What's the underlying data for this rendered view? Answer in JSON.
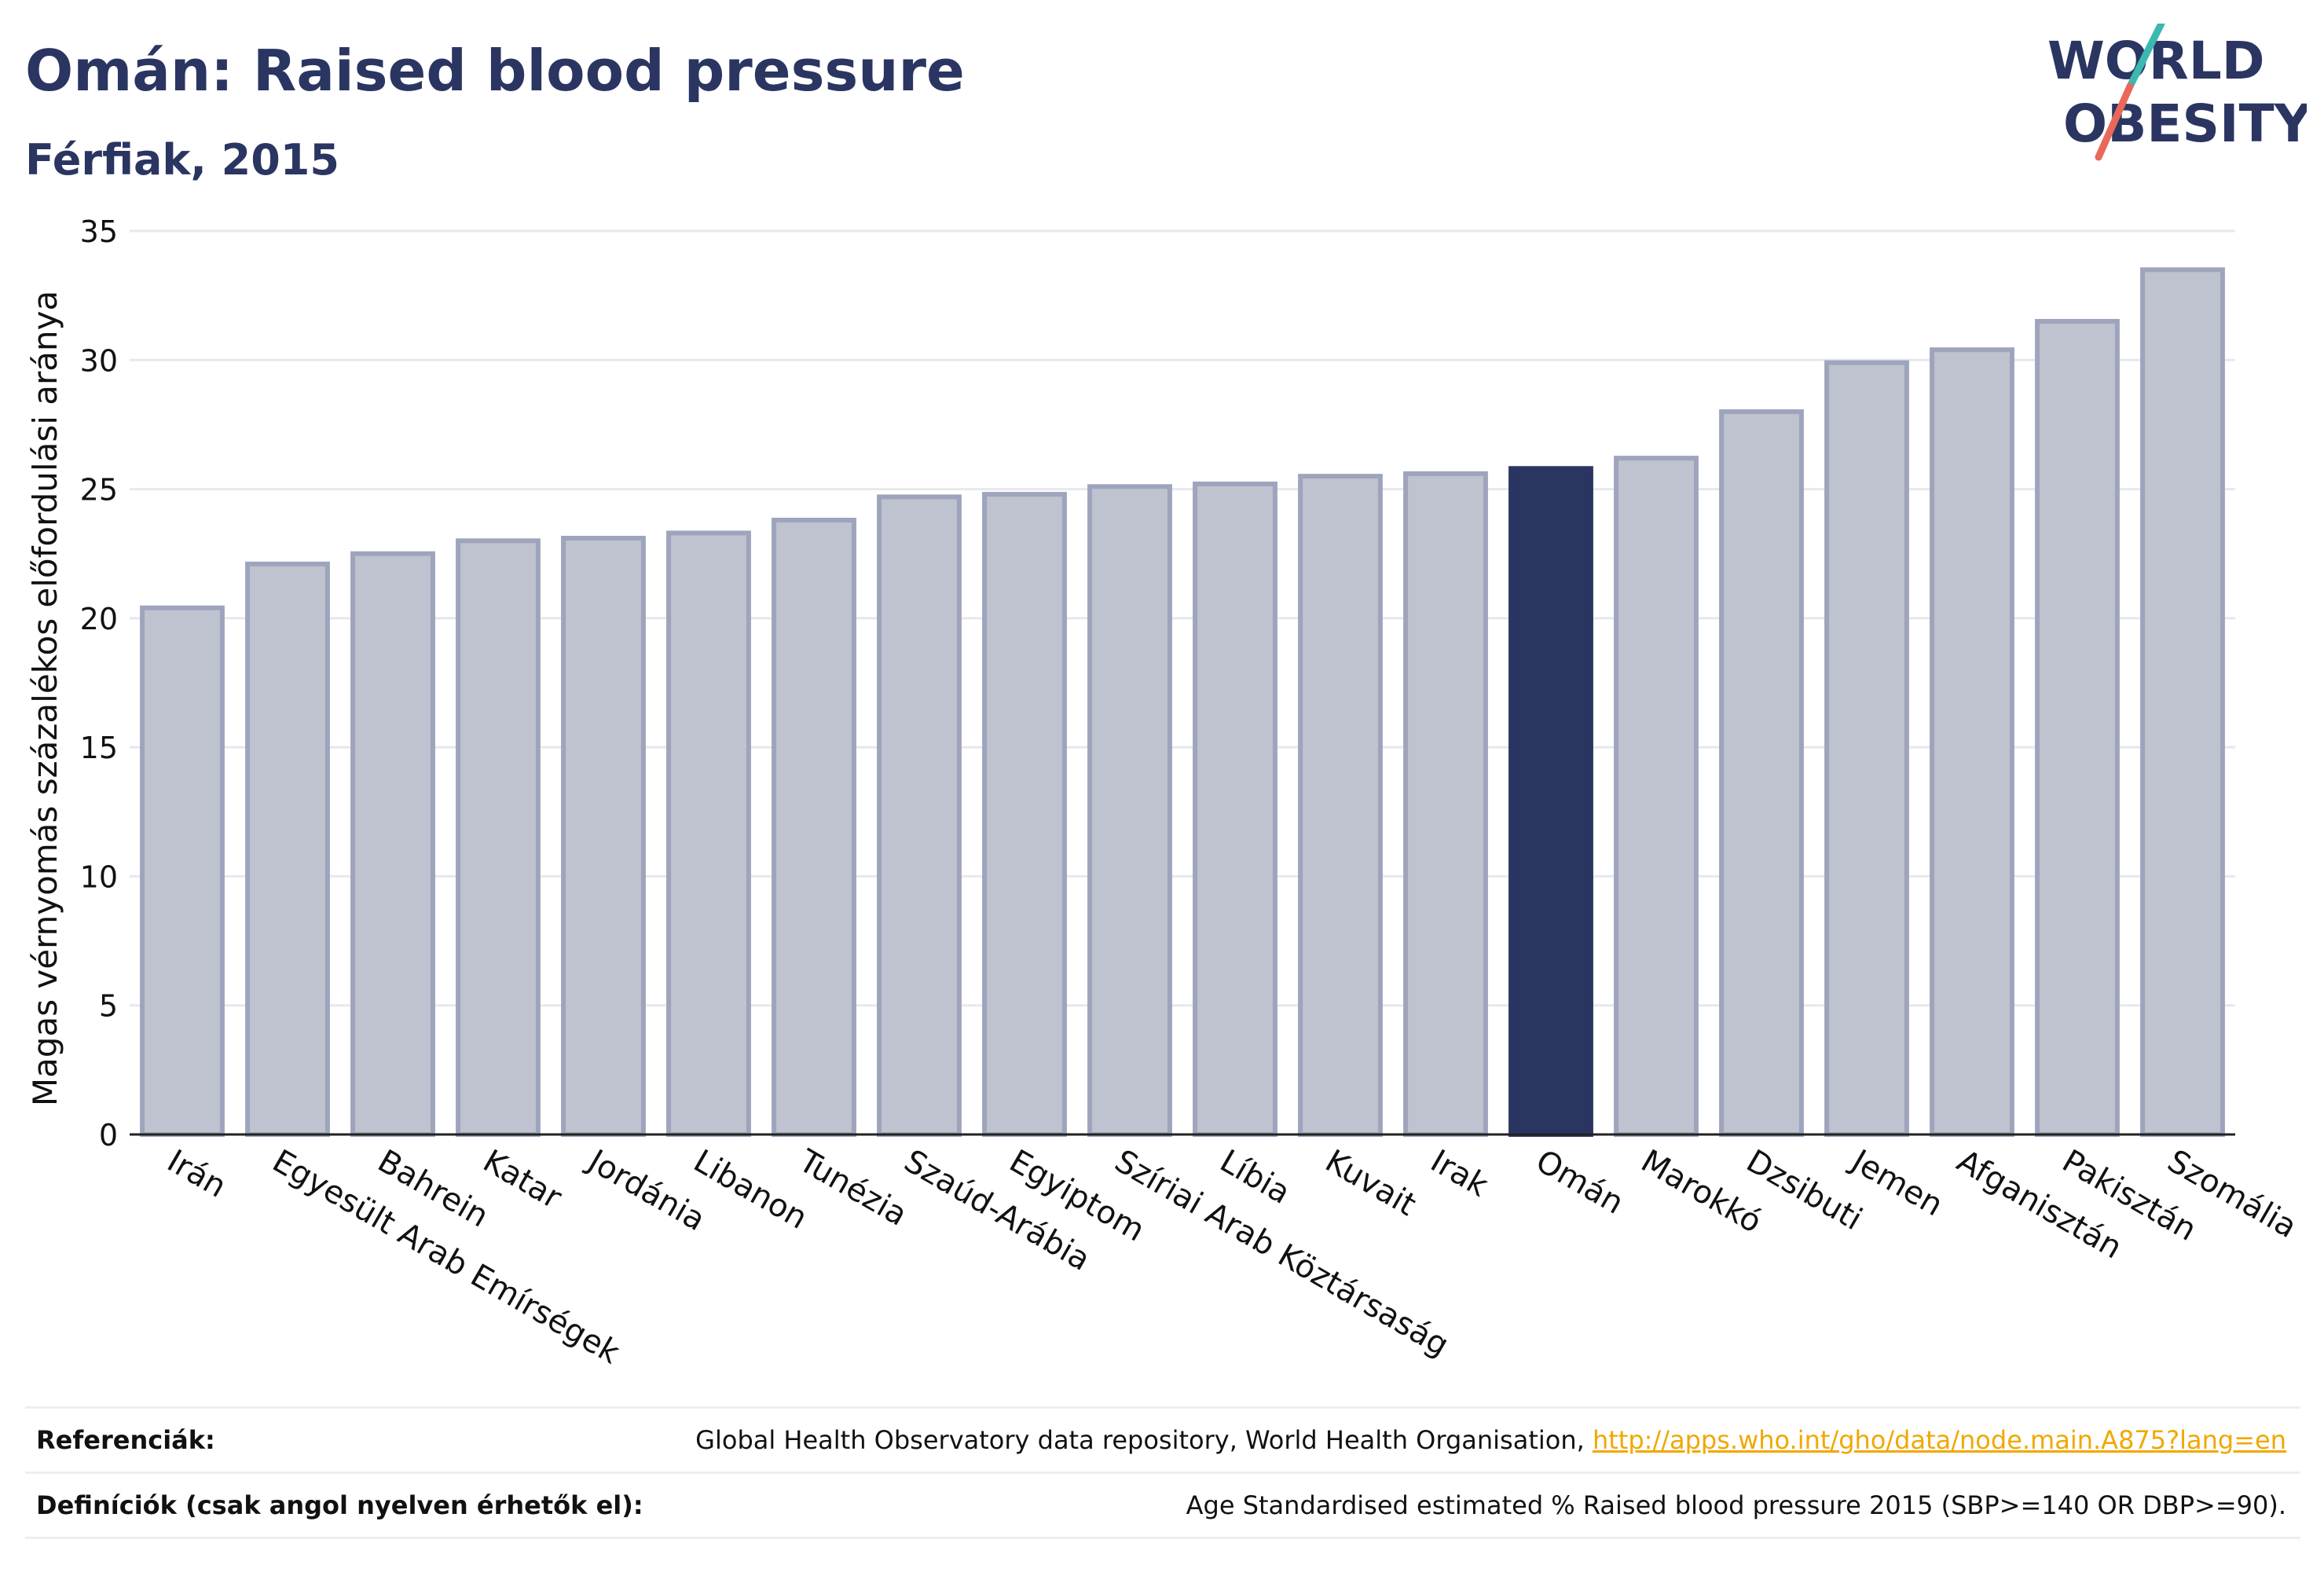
{
  "header": {
    "title": "Omán: Raised blood pressure",
    "subtitle": "Férfiak, 2015"
  },
  "logo": {
    "line1": "WORLD",
    "line2": "OBESITY",
    "accent_teal": "#3bb8b0",
    "accent_coral": "#e8685a",
    "text_color": "#2b3562"
  },
  "colors": {
    "bar_default_fill": "#bfc2cf",
    "bar_default_stroke": "#9ea4bc",
    "bar_highlight": "#2b3562",
    "grid": "#e6e8ee"
  },
  "chart_data": {
    "type": "bar",
    "ylabel": "Magas vérnyomás százalékos előfordulási aránya",
    "xlabel": "",
    "ylim": [
      0,
      35
    ],
    "yticks": [
      0,
      5,
      10,
      15,
      20,
      25,
      30,
      35
    ],
    "grid": true,
    "highlight": "Omán",
    "categories": [
      "Irán",
      "Egyesült Arab Emírségek",
      "Bahrein",
      "Katar",
      "Jordánia",
      "Libanon",
      "Tunézia",
      "Szaúd-Arábia",
      "Egyiptom",
      "Szíriai Arab Köztársaság",
      "Líbia",
      "Kuvait",
      "Irak",
      "Omán",
      "Marokkó",
      "Dzsibuti",
      "Jemen",
      "Afganisztán",
      "Pakisztán",
      "Szomália"
    ],
    "values": [
      20.4,
      22.1,
      22.5,
      23.0,
      23.1,
      23.3,
      23.8,
      24.7,
      24.8,
      25.1,
      25.2,
      25.5,
      25.6,
      25.8,
      26.2,
      28.0,
      29.9,
      30.4,
      31.5,
      33.5
    ]
  },
  "references": {
    "ref_label": "Referenciák:",
    "ref_text": "Global Health Observatory data repository, World Health Organisation, ",
    "ref_link": "http://apps.who.int/gho/data/node.main.A875?lang=en",
    "def_label": "Definíciók (csak angol nyelven érhetők el):",
    "def_text": "Age Standardised estimated % Raised blood pressure 2015 (SBP>=140 OR DBP>=90)."
  }
}
